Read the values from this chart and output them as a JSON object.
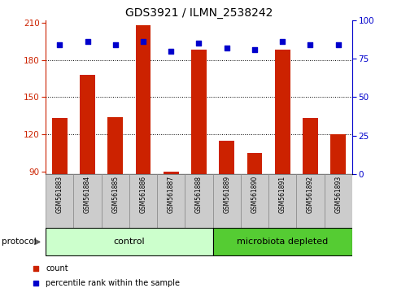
{
  "title": "GDS3921 / ILMN_2538242",
  "samples": [
    "GSM561883",
    "GSM561884",
    "GSM561885",
    "GSM561886",
    "GSM561887",
    "GSM561888",
    "GSM561889",
    "GSM561890",
    "GSM561891",
    "GSM561892",
    "GSM561893"
  ],
  "counts": [
    133,
    168,
    134,
    208,
    90,
    188,
    115,
    105,
    188,
    133,
    120
  ],
  "percentile_ranks": [
    84,
    86,
    84,
    86,
    80,
    85,
    82,
    81,
    86,
    84,
    84
  ],
  "n_control": 6,
  "n_microbiota": 5,
  "ylim_left": [
    88,
    212
  ],
  "yticks_left": [
    90,
    120,
    150,
    180,
    210
  ],
  "ylim_right": [
    0,
    100
  ],
  "yticks_right": [
    0,
    25,
    50,
    75,
    100
  ],
  "bar_color": "#cc2200",
  "dot_color": "#0000cc",
  "control_color": "#ccffcc",
  "microbiota_color": "#55cc33",
  "left_axis_color": "#cc2200",
  "right_axis_color": "#0000cc",
  "background_color": "#ffffff",
  "tick_label_bg": "#cccccc",
  "bar_bottom": 88
}
